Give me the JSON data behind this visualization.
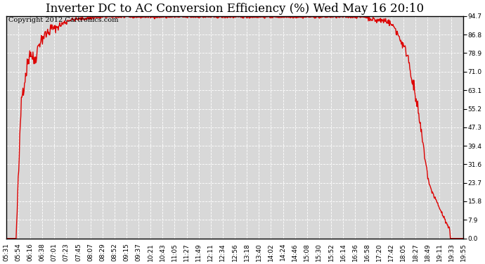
{
  "title": "Inverter DC to AC Conversion Efficiency (%) Wed May 16 20:10",
  "copyright_text": "Copyright 2012 Cartronics.com",
  "line_color": "#dd0000",
  "background_color": "#ffffff",
  "plot_bg_color": "#d8d8d8",
  "grid_color": "#ffffff",
  "yticks": [
    0.0,
    7.9,
    15.8,
    23.7,
    31.6,
    39.4,
    47.3,
    55.2,
    63.1,
    71.0,
    78.9,
    86.8,
    94.7
  ],
  "ymin": 0.0,
  "ymax": 94.7,
  "xtick_labels": [
    "05:31",
    "05:54",
    "06:16",
    "06:38",
    "07:01",
    "07:23",
    "07:45",
    "08:07",
    "08:29",
    "08:52",
    "09:15",
    "09:37",
    "10:21",
    "10:43",
    "11:05",
    "11:27",
    "11:49",
    "12:11",
    "12:34",
    "12:56",
    "13:18",
    "13:40",
    "14:02",
    "14:24",
    "14:46",
    "15:08",
    "15:30",
    "15:52",
    "16:14",
    "16:36",
    "16:58",
    "17:20",
    "17:42",
    "18:05",
    "18:27",
    "18:49",
    "19:11",
    "19:33",
    "19:55"
  ],
  "title_fontsize": 12,
  "copyright_fontsize": 7,
  "tick_fontsize": 6.5,
  "line_width": 1.0
}
